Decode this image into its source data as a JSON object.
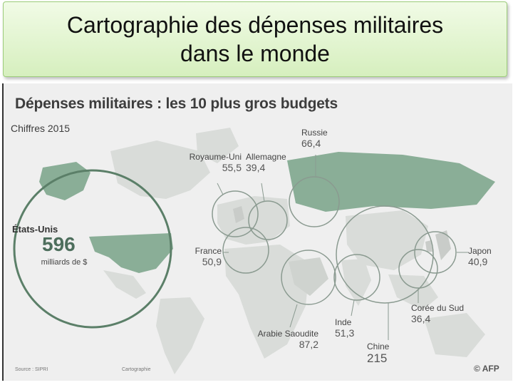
{
  "slide": {
    "title_line1": "Cartographie des dépenses militaires",
    "title_line2": "dans le monde"
  },
  "map": {
    "heading": "Dépenses militaires : les 10 plus gros budgets",
    "subheading": "Chiffres 2015",
    "unit": "milliards de $",
    "countries": [
      {
        "name": "États-Unis",
        "value": "596"
      },
      {
        "name": "Chine",
        "value": "215"
      },
      {
        "name": "Arabie Saoudite",
        "value": "87,2"
      },
      {
        "name": "Russie",
        "value": "66,4"
      },
      {
        "name": "Royaume-Uni",
        "value": "55,5"
      },
      {
        "name": "Inde",
        "value": "51,3"
      },
      {
        "name": "France",
        "value": "50,9"
      },
      {
        "name": "Japon",
        "value": "40,9"
      },
      {
        "name": "Allemagne",
        "value": "39,4"
      },
      {
        "name": "Corée du Sud",
        "value": "36,4"
      }
    ],
    "source": "Source : SIPRI",
    "cartography": "Cartographie",
    "credit": "© AFP",
    "colors": {
      "land": "#d9dcd9",
      "highlight": "#8aae97",
      "circle": "#5b7f68",
      "background": "#efefef"
    }
  }
}
